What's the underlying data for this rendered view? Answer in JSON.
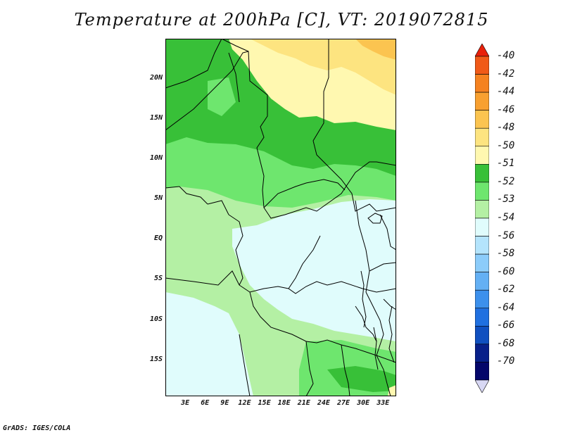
{
  "title": "Temperature at 200hPa [C], VT: 2019072815",
  "credit": "GrADS: IGES/COLA",
  "map": {
    "lat_ticks": [
      "20N",
      "15N",
      "10N",
      "5N",
      "EQ",
      "5S",
      "10S",
      "15S"
    ],
    "lon_ticks": [
      "3E",
      "6E",
      "9E",
      "12E",
      "15E",
      "18E",
      "21E",
      "24E",
      "27E",
      "30E",
      "33E"
    ],
    "lat_range": [
      -19.5,
      25
    ],
    "lon_range": [
      0,
      35
    ]
  },
  "colorbar": {
    "labels": [
      "-40",
      "-42",
      "-44",
      "-46",
      "-48",
      "-50",
      "-51",
      "-52",
      "-53",
      "-54",
      "-56",
      "-58",
      "-60",
      "-62",
      "-64",
      "-66",
      "-68",
      "-70"
    ],
    "colors": [
      "#e8200a",
      "#f05a18",
      "#f58220",
      "#f8a030",
      "#fbc450",
      "#fde480",
      "#fff8b0",
      "#38c038",
      "#6ee66e",
      "#b4f0a4",
      "#e0fcfc",
      "#b4e4fc",
      "#8cccfa",
      "#64b0f4",
      "#3c90ec",
      "#2070e0",
      "#1050c0",
      "#08208a",
      "#04066a",
      "#d8d8f4"
    ]
  }
}
